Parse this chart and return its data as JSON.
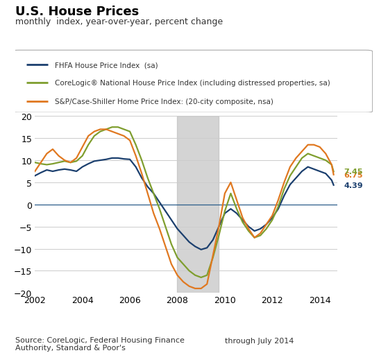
{
  "title": "U.S. House Prices",
  "subtitle": "monthly  index, year-over-year, percent change",
  "source_text": "Source: CoreLogic, Federal Housing Finance\nAuthority, Standard & Poor's",
  "through_text": "through July 2014",
  "recession_start": 2008.0,
  "recession_end": 2009.75,
  "ylim": [
    -20,
    20
  ],
  "xlim": [
    2002,
    2014.75
  ],
  "yticks": [
    -20,
    -15,
    -10,
    -5,
    0,
    5,
    10,
    15,
    20
  ],
  "xticks": [
    2002,
    2004,
    2006,
    2008,
    2010,
    2012,
    2014
  ],
  "end_values": {
    "spcs": 6.75,
    "corelogic": 7.45,
    "fhfa": 4.39
  },
  "colors": {
    "fhfa": "#1b3f6e",
    "corelogic": "#7f9e2e",
    "spcs": "#e07820"
  },
  "legend_labels": {
    "fhfa": "FHFA House Price Index  (sa)",
    "corelogic": "CoreLogic® National House Price Index (including distressed properties, sa)",
    "spcs": "S&P/Case-Shiller Home Price Index: (20-city composite, nsa)"
  },
  "fhfa": [
    [
      2002.0,
      6.5
    ],
    [
      2002.25,
      7.2
    ],
    [
      2002.5,
      7.8
    ],
    [
      2002.75,
      7.5
    ],
    [
      2003.0,
      7.8
    ],
    [
      2003.25,
      8.0
    ],
    [
      2003.5,
      7.8
    ],
    [
      2003.75,
      7.5
    ],
    [
      2004.0,
      8.5
    ],
    [
      2004.25,
      9.2
    ],
    [
      2004.5,
      9.8
    ],
    [
      2004.75,
      10.0
    ],
    [
      2005.0,
      10.2
    ],
    [
      2005.25,
      10.5
    ],
    [
      2005.5,
      10.5
    ],
    [
      2005.75,
      10.3
    ],
    [
      2006.0,
      10.2
    ],
    [
      2006.25,
      8.5
    ],
    [
      2006.5,
      6.0
    ],
    [
      2006.75,
      4.0
    ],
    [
      2007.0,
      2.5
    ],
    [
      2007.25,
      0.5
    ],
    [
      2007.5,
      -1.5
    ],
    [
      2007.75,
      -3.5
    ],
    [
      2008.0,
      -5.5
    ],
    [
      2008.25,
      -7.0
    ],
    [
      2008.5,
      -8.5
    ],
    [
      2008.75,
      -9.5
    ],
    [
      2009.0,
      -10.2
    ],
    [
      2009.25,
      -9.8
    ],
    [
      2009.5,
      -8.0
    ],
    [
      2009.75,
      -5.0
    ],
    [
      2010.0,
      -2.0
    ],
    [
      2010.25,
      -1.0
    ],
    [
      2010.5,
      -2.0
    ],
    [
      2010.75,
      -3.5
    ],
    [
      2011.0,
      -5.0
    ],
    [
      2011.25,
      -6.0
    ],
    [
      2011.5,
      -5.5
    ],
    [
      2011.75,
      -4.5
    ],
    [
      2012.0,
      -3.0
    ],
    [
      2012.25,
      -1.0
    ],
    [
      2012.5,
      2.0
    ],
    [
      2012.75,
      4.5
    ],
    [
      2013.0,
      6.0
    ],
    [
      2013.25,
      7.5
    ],
    [
      2013.5,
      8.5
    ],
    [
      2013.75,
      8.0
    ],
    [
      2014.0,
      7.5
    ],
    [
      2014.25,
      7.0
    ],
    [
      2014.5,
      5.5
    ],
    [
      2014.583,
      4.39
    ]
  ],
  "corelogic": [
    [
      2002.0,
      9.5
    ],
    [
      2002.25,
      9.2
    ],
    [
      2002.5,
      9.0
    ],
    [
      2002.75,
      9.2
    ],
    [
      2003.0,
      9.5
    ],
    [
      2003.25,
      9.8
    ],
    [
      2003.5,
      9.5
    ],
    [
      2003.75,
      9.8
    ],
    [
      2004.0,
      11.0
    ],
    [
      2004.25,
      13.5
    ],
    [
      2004.5,
      15.5
    ],
    [
      2004.75,
      16.5
    ],
    [
      2005.0,
      17.0
    ],
    [
      2005.25,
      17.5
    ],
    [
      2005.5,
      17.5
    ],
    [
      2005.75,
      17.0
    ],
    [
      2006.0,
      16.5
    ],
    [
      2006.25,
      13.5
    ],
    [
      2006.5,
      10.0
    ],
    [
      2006.75,
      6.0
    ],
    [
      2007.0,
      2.5
    ],
    [
      2007.25,
      -1.0
    ],
    [
      2007.5,
      -5.0
    ],
    [
      2007.75,
      -9.0
    ],
    [
      2008.0,
      -12.0
    ],
    [
      2008.25,
      -13.5
    ],
    [
      2008.5,
      -15.0
    ],
    [
      2008.75,
      -16.0
    ],
    [
      2009.0,
      -16.5
    ],
    [
      2009.25,
      -16.0
    ],
    [
      2009.5,
      -12.0
    ],
    [
      2009.75,
      -7.0
    ],
    [
      2010.0,
      -1.5
    ],
    [
      2010.25,
      2.5
    ],
    [
      2010.5,
      -1.0
    ],
    [
      2010.75,
      -4.0
    ],
    [
      2011.0,
      -6.0
    ],
    [
      2011.25,
      -7.5
    ],
    [
      2011.5,
      -7.0
    ],
    [
      2011.75,
      -5.5
    ],
    [
      2012.0,
      -3.5
    ],
    [
      2012.25,
      -0.5
    ],
    [
      2012.5,
      3.5
    ],
    [
      2012.75,
      6.5
    ],
    [
      2013.0,
      8.5
    ],
    [
      2013.25,
      10.5
    ],
    [
      2013.5,
      11.5
    ],
    [
      2013.75,
      11.0
    ],
    [
      2014.0,
      10.5
    ],
    [
      2014.25,
      10.0
    ],
    [
      2014.5,
      9.0
    ],
    [
      2014.583,
      7.45
    ]
  ],
  "spcs": [
    [
      2002.0,
      7.5
    ],
    [
      2002.25,
      9.5
    ],
    [
      2002.5,
      11.5
    ],
    [
      2002.75,
      12.5
    ],
    [
      2003.0,
      11.0
    ],
    [
      2003.25,
      10.0
    ],
    [
      2003.5,
      9.5
    ],
    [
      2003.75,
      10.5
    ],
    [
      2004.0,
      13.0
    ],
    [
      2004.25,
      15.5
    ],
    [
      2004.5,
      16.5
    ],
    [
      2004.75,
      17.0
    ],
    [
      2005.0,
      17.0
    ],
    [
      2005.25,
      16.5
    ],
    [
      2005.5,
      16.0
    ],
    [
      2005.75,
      15.5
    ],
    [
      2006.0,
      14.5
    ],
    [
      2006.25,
      11.0
    ],
    [
      2006.5,
      7.0
    ],
    [
      2006.75,
      2.5
    ],
    [
      2007.0,
      -2.0
    ],
    [
      2007.25,
      -5.5
    ],
    [
      2007.5,
      -9.5
    ],
    [
      2007.75,
      -13.5
    ],
    [
      2008.0,
      -16.0
    ],
    [
      2008.25,
      -17.5
    ],
    [
      2008.5,
      -18.5
    ],
    [
      2008.75,
      -19.0
    ],
    [
      2009.0,
      -19.0
    ],
    [
      2009.25,
      -18.0
    ],
    [
      2009.5,
      -11.5
    ],
    [
      2009.75,
      -5.0
    ],
    [
      2010.0,
      2.5
    ],
    [
      2010.25,
      5.0
    ],
    [
      2010.5,
      1.0
    ],
    [
      2010.75,
      -3.0
    ],
    [
      2011.0,
      -5.5
    ],
    [
      2011.25,
      -7.5
    ],
    [
      2011.5,
      -6.5
    ],
    [
      2011.75,
      -4.5
    ],
    [
      2012.0,
      -2.5
    ],
    [
      2012.25,
      1.0
    ],
    [
      2012.5,
      5.0
    ],
    [
      2012.75,
      8.5
    ],
    [
      2013.0,
      10.5
    ],
    [
      2013.25,
      12.0
    ],
    [
      2013.5,
      13.5
    ],
    [
      2013.75,
      13.5
    ],
    [
      2014.0,
      13.0
    ],
    [
      2014.25,
      11.5
    ],
    [
      2014.5,
      9.0
    ],
    [
      2014.583,
      6.75
    ]
  ]
}
